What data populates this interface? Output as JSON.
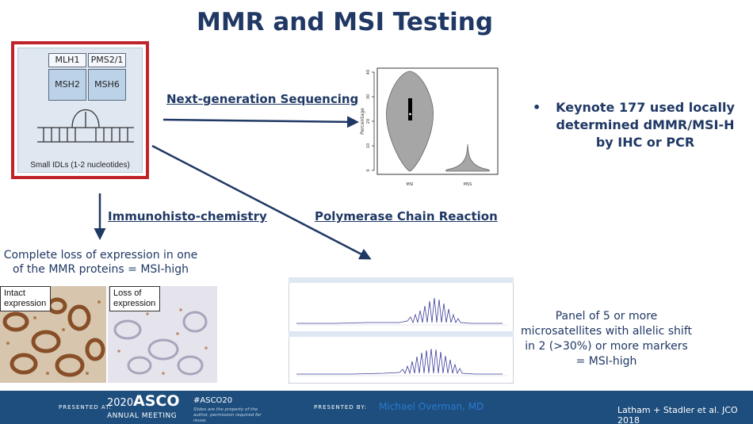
{
  "title": "MMR and MSI Testing",
  "mmr_diagram": {
    "proteins": [
      "MLH1",
      "PMS2/1",
      "MSH2",
      "MSH6"
    ],
    "caption": "Small IDLs (1-2 nucleotides)"
  },
  "methods": {
    "ngs": "Next-generation Sequencing",
    "ihc": "Immunohisto-chemistry",
    "pcr": "Polymerase Chain Reaction"
  },
  "violin_plot": {
    "ylabel": "Percentage",
    "yticks": [
      "0",
      "10",
      "20",
      "30",
      "40"
    ],
    "categories": [
      "MSI",
      "MSS"
    ]
  },
  "ihc": {
    "description": "Complete loss of expression in one of the MMR proteins = MSI-high",
    "image_labels": [
      "Intact expression",
      "Loss of expression"
    ]
  },
  "bullet": {
    "marker": "•",
    "text": "Keynote 177 used locally determined dMMR/MSI-H by IHC or PCR"
  },
  "pcr_panel": {
    "description": "Panel of 5 or more microsatellites with allelic shift in 2 (>30%) or more markers = MSI-high"
  },
  "footer": {
    "presented_at": "PRESENTED AT:",
    "asco_year": "2020",
    "asco_name": "ASCO",
    "annual_meeting": "ANNUAL MEETING",
    "hashtag": "#ASCO20",
    "rights": "Slides are the property of the author, permission required for reuse.",
    "presented_by": "PRESENTED BY:",
    "presenter": "Michael Overman, MD",
    "citation": "Latham + Stadler et al. JCO 2018"
  },
  "colors": {
    "title_blue": "#1f3864",
    "arrow_navy": "#1f3864",
    "mmr_border_red": "#c0242b",
    "footer_blue": "#1d4e7d",
    "presenter_blue": "#2a7ad2"
  }
}
